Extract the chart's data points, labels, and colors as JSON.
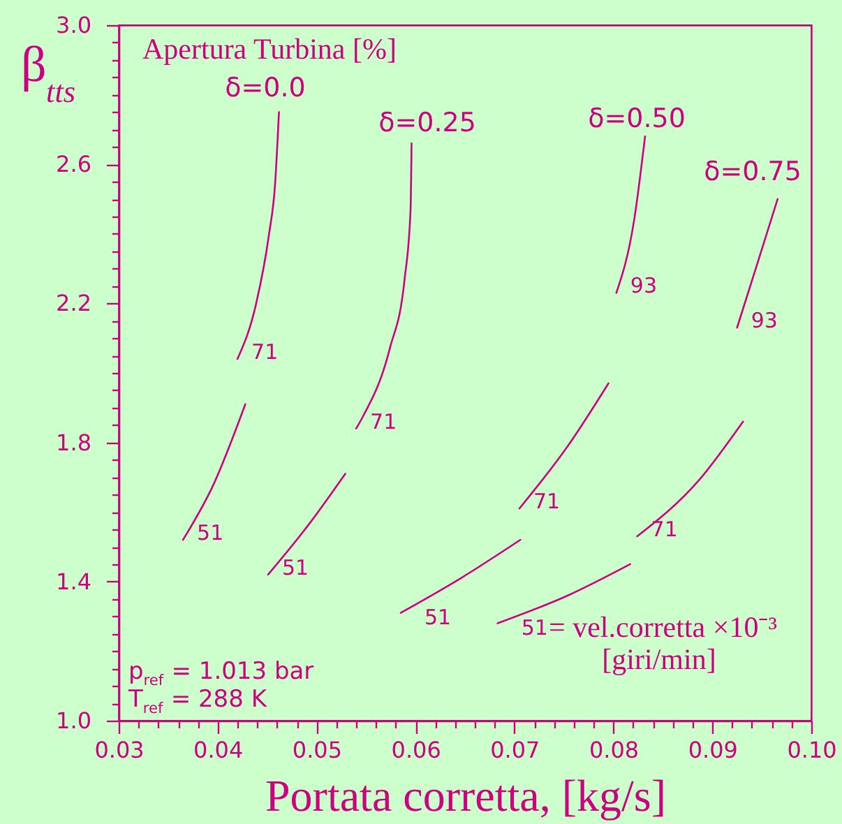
{
  "chart_data": {
    "type": "line",
    "xlabel": "Portata corretta, [kg/s]",
    "ylabel": "β$_{tts}$",
    "xlim": [
      0.03,
      0.1
    ],
    "ylim": [
      1.0,
      3.0
    ],
    "xticks": [
      0.03,
      {
        "value": 0.032,
        "label": null
      },
      {
        "value": 0.034,
        "label": null
      },
      {
        "value": 0.036,
        "label": null
      },
      {
        "value": 0.038,
        "label": null
      },
      0.04,
      {
        "value": 0.042,
        "label": null
      },
      {
        "value": 0.044,
        "label": null
      },
      {
        "value": 0.046,
        "label": null
      },
      {
        "value": 0.048,
        "label": null
      },
      0.05,
      {
        "value": 0.052,
        "label": null
      },
      {
        "value": 0.054,
        "label": null
      },
      {
        "value": 0.056,
        "label": null
      },
      {
        "value": 0.058,
        "label": null
      },
      0.06,
      {
        "value": 0.062,
        "label": null
      },
      {
        "value": 0.064,
        "label": null
      },
      {
        "value": 0.066,
        "label": null
      },
      {
        "value": 0.068,
        "label": null
      },
      0.07,
      {
        "value": 0.072,
        "label": null
      },
      {
        "value": 0.074,
        "label": null
      },
      {
        "value": 0.076,
        "label": null
      },
      {
        "value": 0.078,
        "label": null
      },
      0.08,
      {
        "value": 0.082,
        "label": null
      },
      {
        "value": 0.084,
        "label": null
      },
      {
        "value": 0.086,
        "label": null
      },
      {
        "value": 0.088,
        "label": null
      },
      0.09,
      {
        "value": 0.092,
        "label": null
      },
      {
        "value": 0.094,
        "label": null
      },
      {
        "value": 0.096,
        "label": null
      },
      {
        "value": 0.098,
        "label": null
      },
      {
        "value": 0.1,
        "label": "0.10"
      }
    ],
    "yticks": [
      {
        "value": 1.0,
        "label": "1.0"
      },
      {
        "value": 1.05,
        "label": null
      },
      {
        "value": 1.1,
        "label": null
      },
      {
        "value": 1.15,
        "label": null
      },
      {
        "value": 1.2,
        "label": null
      },
      {
        "value": 1.25,
        "label": null
      },
      {
        "value": 1.3,
        "label": null
      },
      {
        "value": 1.35,
        "label": null
      },
      1.4,
      {
        "value": 1.45,
        "label": null
      },
      {
        "value": 1.5,
        "label": null
      },
      {
        "value": 1.55,
        "label": null
      },
      {
        "value": 1.6,
        "label": null
      },
      {
        "value": 1.65,
        "label": null
      },
      {
        "value": 1.7,
        "label": null
      },
      {
        "value": 1.75,
        "label": null
      },
      1.8,
      {
        "value": 1.85,
        "label": null
      },
      {
        "value": 1.9,
        "label": null
      },
      {
        "value": 1.95,
        "label": null
      },
      {
        "value": 2.0,
        "label": null
      },
      {
        "value": 2.05,
        "label": null
      },
      {
        "value": 2.1,
        "label": null
      },
      {
        "value": 2.15,
        "label": null
      },
      2.2,
      {
        "value": 2.25,
        "label": null
      },
      {
        "value": 2.3,
        "label": null
      },
      {
        "value": 2.35,
        "label": null
      },
      {
        "value": 2.4,
        "label": null
      },
      {
        "value": 2.45,
        "label": null
      },
      {
        "value": 2.5,
        "label": null
      },
      {
        "value": 2.55,
        "label": null
      },
      2.6,
      {
        "value": 2.65,
        "label": null
      },
      {
        "value": 2.7,
        "label": null
      },
      {
        "value": 2.75,
        "label": null
      },
      {
        "value": 2.8,
        "label": null
      },
      {
        "value": 2.85,
        "label": null
      },
      {
        "value": 2.9,
        "label": null
      },
      {
        "value": 2.95,
        "label": null
      },
      {
        "value": 3.0,
        "label": "3.0"
      }
    ],
    "series": [
      {
        "name": "51",
        "color": "#cc0080",
        "x": [
          0.0365,
          0.0396,
          0.0428
        ],
        "values": [
          1.52,
          1.68,
          1.91
        ]
      },
      {
        "name": "71",
        "color": "#cc0080",
        "x": [
          0.042,
          0.0439,
          0.0452,
          0.0458,
          0.0462
        ],
        "values": [
          2.04,
          2.2,
          2.4,
          2.54,
          2.75
        ]
      },
      {
        "name": "51",
        "color": "#cc0080",
        "x": [
          0.0451,
          0.0491,
          0.0529
        ],
        "values": [
          1.42,
          1.56,
          1.71
        ]
      },
      {
        "name": "71",
        "color": "#cc0080",
        "x": [
          0.054,
          0.0546,
          0.0574,
          0.0589,
          0.0595,
          0.0596
        ],
        "values": [
          1.84,
          1.87,
          2.07,
          2.27,
          2.47,
          2.66
        ]
      },
      {
        "name": "51",
        "color": "#cc0080",
        "x": [
          0.0585,
          0.0646,
          0.0706
        ],
        "values": [
          1.31,
          1.41,
          1.52
        ]
      },
      {
        "name": "71",
        "color": "#cc0080",
        "x": [
          0.0705,
          0.0754,
          0.0795
        ],
        "values": [
          1.61,
          1.79,
          1.97
        ]
      },
      {
        "name": "93",
        "color": "#cc0080",
        "x": [
          0.0803,
          0.0821,
          0.0832
        ],
        "values": [
          2.23,
          2.44,
          2.68
        ]
      },
      {
        "name": "51",
        "color": "#cc0080",
        "x": [
          0.0683,
          0.0754,
          0.0817
        ],
        "values": [
          1.28,
          1.36,
          1.45
        ]
      },
      {
        "name": "71",
        "color": "#cc0080",
        "x": [
          0.0824,
          0.0886,
          0.0931
        ],
        "values": [
          1.53,
          1.69,
          1.86
        ]
      },
      {
        "name": "93",
        "color": "#cc0080",
        "x": [
          0.0925,
          0.0945,
          0.0966
        ],
        "values": [
          2.13,
          2.31,
          2.5
        ]
      }
    ],
    "annotations": [
      "Apertura Turbina [%]",
      "δ=0.0",
      "δ=0.25",
      "δ=0.50",
      "δ=0.75",
      "= vel.corretta ×10⁻³",
      "[giri/min]",
      "p$_{ref}$ = 1.013 bar",
      "T$_{ref}$ = 288 K"
    ]
  }
}
